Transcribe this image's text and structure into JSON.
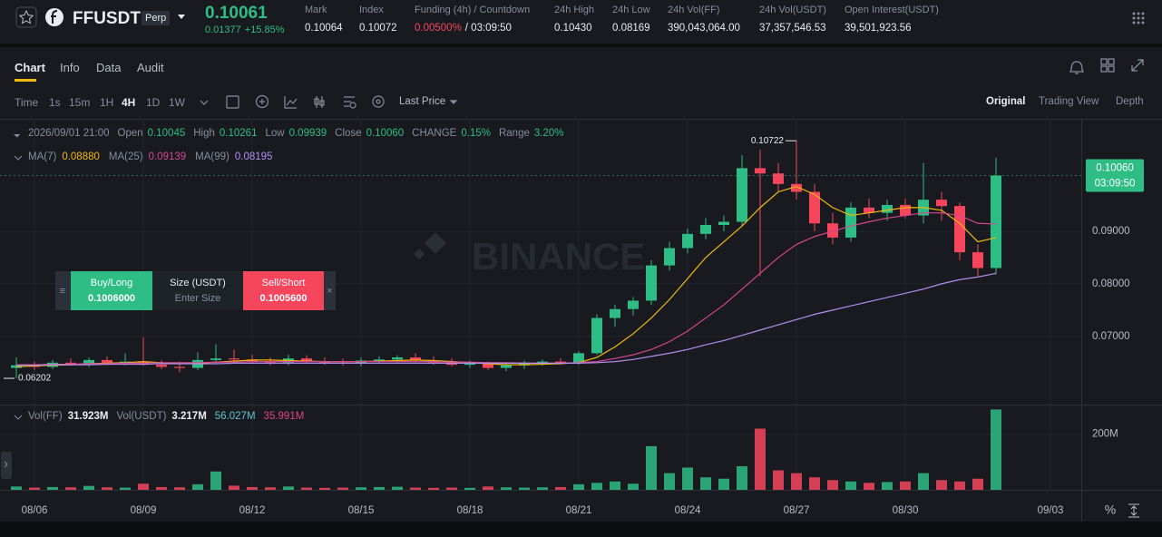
{
  "header": {
    "symbol": "FFUSDT",
    "badge": "Perp",
    "price": "0.10061",
    "change": "0.01377",
    "change_pct": "+15.85%",
    "stats": [
      {
        "label": "Mark",
        "value": "0.10064"
      },
      {
        "label": "Index",
        "value": "0.10072"
      },
      {
        "label": "Funding (4h) / Countdown",
        "value": "0.00500%",
        "extra": "/ 03:09:50"
      },
      {
        "label": "24h High",
        "value": "0.10430"
      },
      {
        "label": "24h Low",
        "value": "0.08169"
      },
      {
        "label": "24h Vol(FF)",
        "value": "390,043,064.00"
      },
      {
        "label": "24h Vol(USDT)",
        "value": "37,357,546.53"
      },
      {
        "label": "Open Interest(USDT)",
        "value": "39,501,923.56"
      }
    ]
  },
  "tabs": [
    "Chart",
    "Info",
    "Data",
    "Audit"
  ],
  "intervals": [
    "Time",
    "1s",
    "15m",
    "1H",
    "4H",
    "1D",
    "1W"
  ],
  "price_type": "Last Price",
  "views": [
    "Original",
    "Trading View",
    "Depth"
  ],
  "ohlc_legend": {
    "date": "2026/09/01 21:00",
    "items": [
      {
        "label": "Open",
        "value": "0.10045"
      },
      {
        "label": "High",
        "value": "0.10261"
      },
      {
        "label": "Low",
        "value": "0.09939"
      },
      {
        "label": "Close",
        "value": "0.10060"
      },
      {
        "label": "CHANGE",
        "value": "0.15%"
      },
      {
        "label": "Range",
        "value": "3.20%"
      }
    ]
  },
  "volume_legend": [
    {
      "label": "Vol(FF)",
      "value": "31.923M"
    },
    {
      "label": "Vol(USDT)",
      "value": "3.217M"
    },
    {
      "value": "56.027M"
    },
    {
      "value": "35.991M"
    }
  ],
  "order_panel": {
    "buy_label": "Buy/Long",
    "buy_price": "0.1006000",
    "size_label": "Size (USDT)",
    "size_placeholder": "Enter Size",
    "sell_label": "Sell/Short",
    "sell_price": "0.1005600"
  },
  "watermark": "BINANCE",
  "axis_button": "%",
  "chart_data": {
    "type": "candlestick",
    "categories": [
      null,
      "08/06",
      null,
      null,
      null,
      null,
      null,
      "08/09",
      null,
      null,
      null,
      null,
      null,
      "08/12",
      null,
      null,
      null,
      null,
      null,
      "08/15",
      null,
      null,
      null,
      null,
      null,
      "08/18",
      null,
      null,
      null,
      null,
      null,
      "08/21",
      null,
      null,
      null,
      null,
      null,
      "08/24",
      null,
      null,
      null,
      null,
      null,
      "08/27",
      null,
      null,
      null,
      null,
      null,
      "08/30",
      null,
      null,
      null,
      null,
      null,
      null,
      null,
      "09/03"
    ],
    "open": [
      0.064,
      0.0645,
      0.0642,
      0.065,
      0.0648,
      0.0655,
      0.065,
      0.0652,
      0.0646,
      0.0642,
      0.064,
      0.0655,
      0.0658,
      0.0656,
      0.0652,
      0.065,
      0.0658,
      0.0652,
      0.065,
      0.0648,
      0.0654,
      0.0656,
      0.066,
      0.0654,
      0.065,
      0.0646,
      0.0648,
      0.064,
      0.0645,
      0.065,
      0.0652,
      0.065,
      0.0668,
      0.0735,
      0.0752,
      0.0768,
      0.0835,
      0.0868,
      0.0895,
      0.0912,
      0.0918,
      0.102,
      0.101,
      0.099,
      0.0975,
      0.0915,
      0.0888,
      0.0945,
      0.0935,
      0.095,
      0.093,
      0.096,
      0.0948,
      0.086,
      0.083,
      null,
      null,
      null
    ],
    "high": [
      0.066,
      0.0652,
      0.0655,
      0.0658,
      0.066,
      0.0662,
      0.0668,
      0.0698,
      0.0655,
      0.0652,
      0.067,
      0.0685,
      0.0675,
      0.0665,
      0.066,
      0.0665,
      0.0664,
      0.066,
      0.0658,
      0.066,
      0.0662,
      0.0664,
      0.0668,
      0.0662,
      0.0658,
      0.0654,
      0.0652,
      0.065,
      0.0654,
      0.0656,
      0.0658,
      0.0672,
      0.0742,
      0.076,
      0.0775,
      0.0845,
      0.088,
      0.0905,
      0.0925,
      0.093,
      0.1045,
      0.1055,
      0.103,
      0.10722,
      0.099,
      0.0935,
      0.0955,
      0.0962,
      0.096,
      0.0962,
      0.103,
      0.0975,
      0.0955,
      0.0875,
      0.104,
      null,
      null,
      null
    ],
    "low": [
      0.06202,
      0.0636,
      0.0638,
      0.0644,
      0.0642,
      0.0645,
      0.0645,
      0.0644,
      0.0638,
      0.0632,
      0.0636,
      0.0648,
      0.065,
      0.0648,
      0.0645,
      0.0645,
      0.0648,
      0.0646,
      0.0644,
      0.0643,
      0.0648,
      0.065,
      0.065,
      0.0646,
      0.0643,
      0.064,
      0.0636,
      0.0634,
      0.0638,
      0.0644,
      0.0646,
      0.0646,
      0.0665,
      0.0718,
      0.074,
      0.076,
      0.0825,
      0.0858,
      0.0885,
      0.09,
      0.091,
      0.0815,
      0.0975,
      0.096,
      0.09,
      0.0875,
      0.088,
      0.0925,
      0.092,
      0.0925,
      0.0915,
      0.092,
      0.0845,
      0.0815,
      0.0818,
      null,
      null,
      null
    ],
    "close": [
      0.0645,
      0.0642,
      0.065,
      0.0648,
      0.0655,
      0.065,
      0.0652,
      0.0646,
      0.0642,
      0.064,
      0.0655,
      0.0658,
      0.0656,
      0.0652,
      0.065,
      0.0658,
      0.0652,
      0.065,
      0.0648,
      0.0654,
      0.0656,
      0.066,
      0.0654,
      0.065,
      0.0646,
      0.0648,
      0.064,
      0.0645,
      0.065,
      0.0652,
      0.065,
      0.0668,
      0.0735,
      0.0752,
      0.0768,
      0.0835,
      0.0868,
      0.0895,
      0.0912,
      0.0918,
      0.102,
      0.101,
      0.099,
      0.0975,
      0.0915,
      0.0888,
      0.0945,
      0.0935,
      0.095,
      0.093,
      0.096,
      0.0948,
      0.086,
      0.083,
      0.1006,
      null,
      null,
      null
    ],
    "up_color": "#2ebd85",
    "down_color": "#f6465d",
    "ylim": [
      0.0572,
      0.1107
    ],
    "yticks": [
      {
        "value": 0.07,
        "label": "0.07000"
      },
      {
        "value": 0.08,
        "label": "0.08000"
      },
      {
        "value": 0.09,
        "label": "0.09000"
      }
    ],
    "grid": true,
    "max_label": "0.10722",
    "min_label": "0.06202",
    "last_price": {
      "value": 0.1006,
      "label": "0.10060"
    },
    "countdown": "03:09:50",
    "series": [
      {
        "name": "MA(7)",
        "color": "#f0b90b",
        "legend_value": "0.08880",
        "values": [
          0.0642,
          0.0644,
          0.0645,
          0.0646,
          0.0648,
          0.0649,
          0.065,
          0.0652,
          0.065,
          0.0648,
          0.0649,
          0.0651,
          0.0653,
          0.0655,
          0.0655,
          0.0654,
          0.0653,
          0.0652,
          0.0652,
          0.0652,
          0.0653,
          0.0654,
          0.0655,
          0.0654,
          0.0652,
          0.065,
          0.0648,
          0.0646,
          0.0646,
          0.0647,
          0.0648,
          0.065,
          0.066,
          0.068,
          0.0705,
          0.0735,
          0.077,
          0.081,
          0.085,
          0.088,
          0.091,
          0.0945,
          0.0975,
          0.0985,
          0.097,
          0.0945,
          0.093,
          0.0935,
          0.094,
          0.0945,
          0.0945,
          0.094,
          0.0915,
          0.088,
          0.0888,
          null,
          null,
          null
        ]
      },
      {
        "name": "MA(25)",
        "color": "#d5458f",
        "legend_value": "0.09139",
        "values": [
          0.0646,
          0.0646,
          0.0647,
          0.0647,
          0.0648,
          0.0648,
          0.0649,
          0.0649,
          0.065,
          0.065,
          0.065,
          0.0651,
          0.0651,
          0.0652,
          0.0652,
          0.0652,
          0.0652,
          0.0652,
          0.0652,
          0.0652,
          0.0652,
          0.0652,
          0.0652,
          0.0652,
          0.0651,
          0.0651,
          0.065,
          0.065,
          0.0649,
          0.0649,
          0.0649,
          0.065,
          0.0652,
          0.0658,
          0.0665,
          0.0675,
          0.069,
          0.071,
          0.0735,
          0.076,
          0.079,
          0.082,
          0.085,
          0.0875,
          0.089,
          0.09,
          0.091,
          0.0918,
          0.0925,
          0.093,
          0.0935,
          0.0935,
          0.093,
          0.0915,
          0.0914,
          null,
          null,
          null
        ]
      },
      {
        "name": "MA(99)",
        "color": "#b18df0",
        "legend_value": "0.08195",
        "values": [
          0.0645,
          0.0645,
          0.0646,
          0.0646,
          0.0646,
          0.0647,
          0.0647,
          0.0647,
          0.0648,
          0.0648,
          0.0648,
          0.0648,
          0.0649,
          0.0649,
          0.0649,
          0.0649,
          0.0649,
          0.0649,
          0.0649,
          0.0649,
          0.0649,
          0.0649,
          0.0649,
          0.0649,
          0.0649,
          0.0649,
          0.0649,
          0.0649,
          0.0649,
          0.0649,
          0.0649,
          0.0649,
          0.065,
          0.0652,
          0.0656,
          0.0662,
          0.0668,
          0.0675,
          0.0684,
          0.0692,
          0.0702,
          0.0712,
          0.0722,
          0.0732,
          0.0742,
          0.075,
          0.0758,
          0.0766,
          0.0774,
          0.0782,
          0.079,
          0.08,
          0.0808,
          0.0813,
          0.082,
          null,
          null,
          null
        ]
      }
    ],
    "volume": {
      "values": [
        12000000,
        8000000,
        10000000,
        9000000,
        14000000,
        9000000,
        8000000,
        22000000,
        10000000,
        9000000,
        20000000,
        66000000,
        15000000,
        10000000,
        9000000,
        12000000,
        8000000,
        7000000,
        8000000,
        9000000,
        10000000,
        11000000,
        8000000,
        7000000,
        8000000,
        7000000,
        12000000,
        9000000,
        8000000,
        9000000,
        10000000,
        20000000,
        25000000,
        30000000,
        22000000,
        157000000,
        60000000,
        80000000,
        45000000,
        40000000,
        85000000,
        220000000,
        70000000,
        60000000,
        45000000,
        35000000,
        30000000,
        25000000,
        28000000,
        30000000,
        60000000,
        35000000,
        30000000,
        40000000,
        289000000,
        null,
        null,
        null
      ],
      "ylim": [
        0,
        300000000
      ],
      "yticks": [
        {
          "value": 200000000,
          "label": "200M"
        }
      ]
    }
  }
}
